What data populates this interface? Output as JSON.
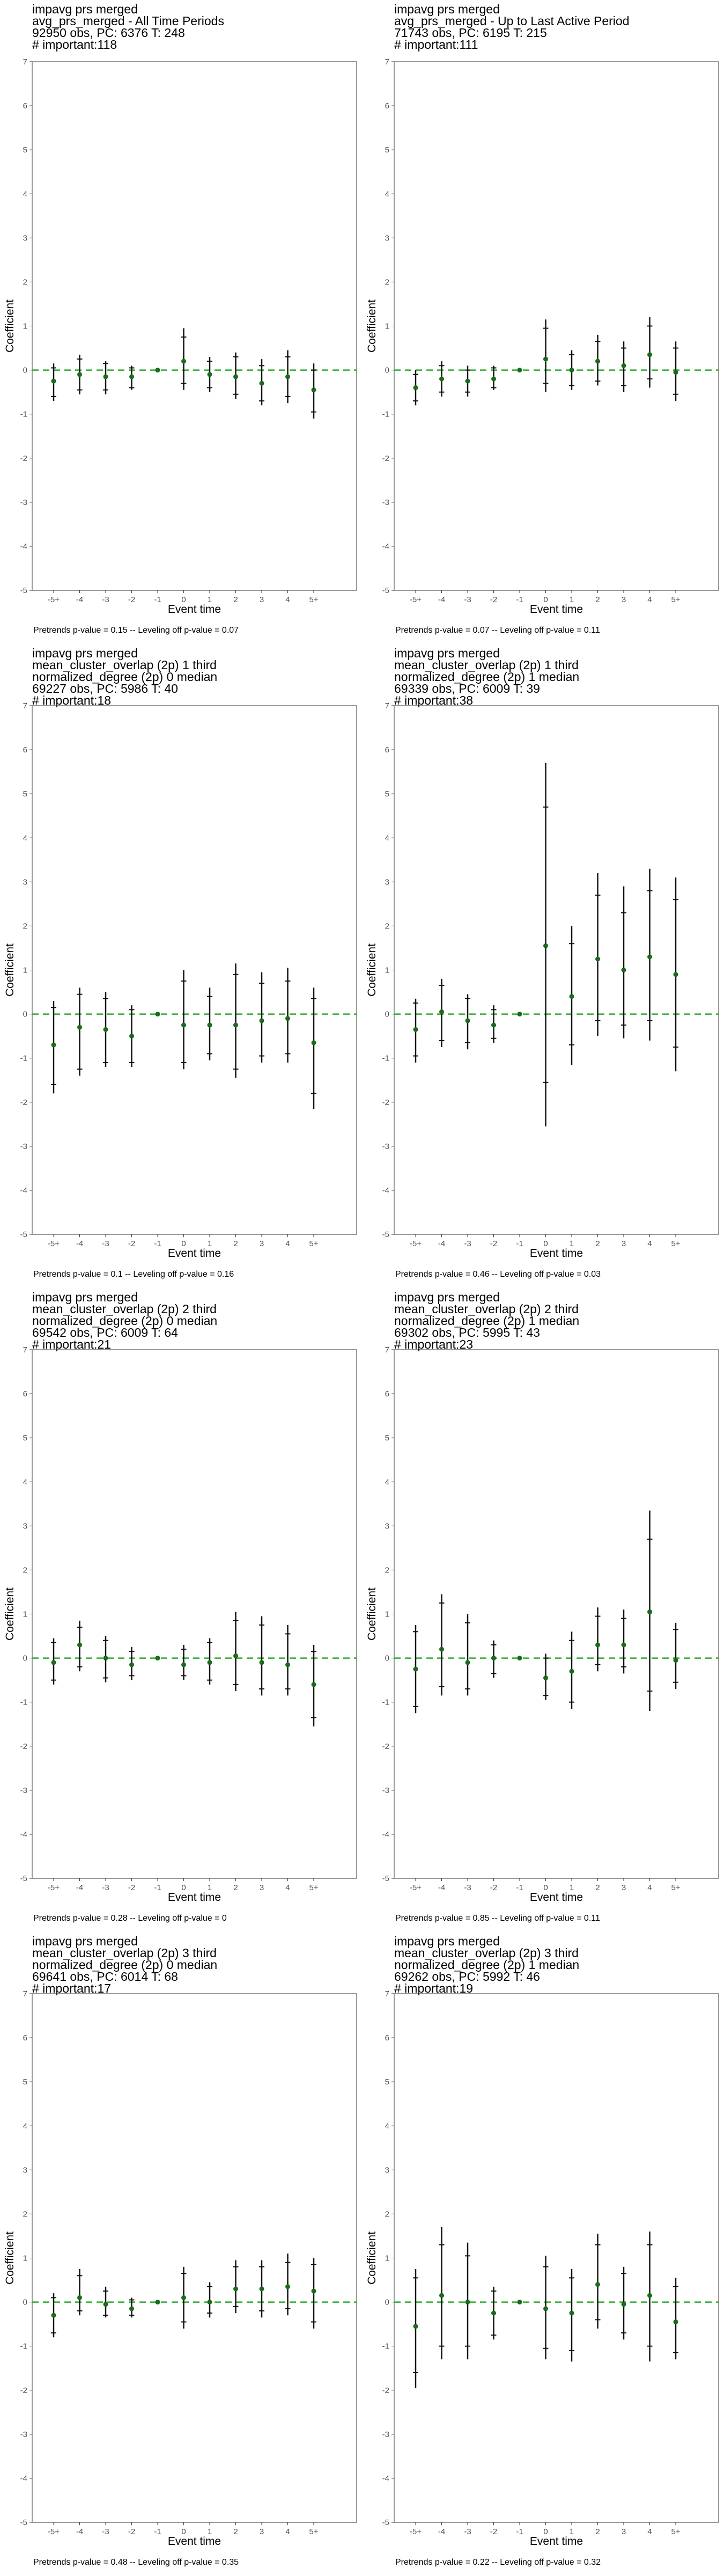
{
  "chart_data": [
    {
      "type": "errorbar",
      "title_lines": [
        "impavg prs merged",
        "avg_prs_merged - All Time Periods",
        "92950 obs, PC: 6376 T: 248",
        "# important:118"
      ],
      "xlabel": "Event time",
      "ylabel": "Coefficient",
      "ylim": [
        -5,
        7
      ],
      "y_ticks": [
        -5,
        -4,
        -3,
        -2,
        -1,
        0,
        1,
        2,
        3,
        4,
        5,
        6,
        7
      ],
      "categories": [
        "-5+",
        "-4",
        "-3",
        "-2",
        "-1",
        "0",
        "1",
        "2",
        "3",
        "4",
        "5+"
      ],
      "estimate": [
        -0.25,
        -0.1,
        -0.15,
        -0.15,
        0,
        0.2,
        -0.1,
        -0.15,
        -0.3,
        -0.15,
        -0.45
      ],
      "ci95_low": [
        -0.7,
        -0.55,
        -0.55,
        -0.45,
        0,
        -0.45,
        -0.5,
        -0.65,
        -0.8,
        -0.75,
        -1.1
      ],
      "ci95_high": [
        0.15,
        0.35,
        0.2,
        0.1,
        0,
        0.95,
        0.3,
        0.4,
        0.25,
        0.45,
        0.15
      ],
      "ci90_low": [
        -0.6,
        -0.45,
        -0.45,
        -0.4,
        0,
        -0.3,
        -0.4,
        -0.55,
        -0.7,
        -0.6,
        -0.95
      ],
      "ci90_high": [
        0.05,
        0.25,
        0.15,
        0.05,
        0,
        0.75,
        0.2,
        0.3,
        0.1,
        0.3,
        0.0
      ],
      "zero_line_color": "#2eaa2e",
      "point_color": "#1a6b1a",
      "footnote": "Pretrends p-value = 0.15 -- Leveling off p-value = 0.07"
    },
    {
      "type": "errorbar",
      "title_lines": [
        "impavg prs merged",
        "avg_prs_merged - Up to Last Active Period",
        "71743 obs, PC: 6195 T: 215",
        "# important:111"
      ],
      "xlabel": "Event time",
      "ylabel": "Coefficient",
      "ylim": [
        -5,
        7
      ],
      "y_ticks": [
        -5,
        -4,
        -3,
        -2,
        -1,
        0,
        1,
        2,
        3,
        4,
        5,
        6,
        7
      ],
      "categories": [
        "-5+",
        "-4",
        "-3",
        "-2",
        "-1",
        "0",
        "1",
        "2",
        "3",
        "4",
        "5+"
      ],
      "estimate": [
        -0.4,
        -0.2,
        -0.25,
        -0.2,
        0,
        0.25,
        0.0,
        0.2,
        0.1,
        0.35,
        -0.05
      ],
      "ci95_low": [
        -0.8,
        -0.6,
        -0.6,
        -0.45,
        0,
        -0.5,
        -0.45,
        -0.35,
        -0.5,
        -0.4,
        -0.7
      ],
      "ci95_high": [
        0.0,
        0.2,
        0.1,
        0.1,
        0,
        1.15,
        0.45,
        0.8,
        0.65,
        1.2,
        0.65
      ],
      "ci90_low": [
        -0.7,
        -0.5,
        -0.5,
        -0.4,
        0,
        -0.3,
        -0.35,
        -0.25,
        -0.35,
        -0.2,
        -0.55
      ],
      "ci90_high": [
        -0.1,
        0.1,
        0.0,
        0.05,
        0,
        0.95,
        0.35,
        0.65,
        0.5,
        1.0,
        0.5
      ],
      "zero_line_color": "#2eaa2e",
      "point_color": "#1a6b1a",
      "footnote": "Pretrends p-value = 0.07 -- Leveling off p-value = 0.11"
    },
    {
      "type": "errorbar",
      "title_lines": [
        "impavg prs merged",
        "mean_cluster_overlap (2p) 1 third",
        "normalized_degree (2p) 0 median",
        "69227 obs, PC: 5986 T: 40",
        "# important:18"
      ],
      "xlabel": "Event time",
      "ylabel": "Coefficient",
      "ylim": [
        -5,
        7
      ],
      "y_ticks": [
        -5,
        -4,
        -3,
        -2,
        -1,
        0,
        1,
        2,
        3,
        4,
        5,
        6,
        7
      ],
      "categories": [
        "-5+",
        "-4",
        "-3",
        "-2",
        "-1",
        "0",
        "1",
        "2",
        "3",
        "4",
        "5+"
      ],
      "estimate": [
        -0.7,
        -0.3,
        -0.35,
        -0.5,
        0,
        -0.25,
        -0.25,
        -0.25,
        -0.15,
        -0.1,
        -0.65
      ],
      "ci95_low": [
        -1.8,
        -1.4,
        -1.2,
        -1.2,
        0,
        -1.25,
        -1.05,
        -1.45,
        -1.1,
        -1.1,
        -2.15
      ],
      "ci95_high": [
        0.3,
        0.6,
        0.5,
        0.2,
        0,
        1.0,
        0.6,
        1.15,
        0.95,
        1.05,
        0.6
      ],
      "ci90_low": [
        -1.6,
        -1.25,
        -1.1,
        -1.1,
        0,
        -1.1,
        -0.9,
        -1.25,
        -0.95,
        -0.9,
        -1.8
      ],
      "ci90_high": [
        0.15,
        0.45,
        0.35,
        0.1,
        0,
        0.75,
        0.4,
        0.9,
        0.7,
        0.75,
        0.35
      ],
      "zero_line_color": "#2eaa2e",
      "point_color": "#1a6b1a",
      "footnote": "Pretrends p-value = 0.1 -- Leveling off p-value = 0.16"
    },
    {
      "type": "errorbar",
      "title_lines": [
        "impavg prs merged",
        "mean_cluster_overlap (2p) 1 third",
        "normalized_degree (2p) 1 median",
        "69339 obs, PC: 6009 T: 39",
        "# important:38"
      ],
      "xlabel": "Event time",
      "ylabel": "Coefficient",
      "ylim": [
        -5,
        7
      ],
      "y_ticks": [
        -5,
        -4,
        -3,
        -2,
        -1,
        0,
        1,
        2,
        3,
        4,
        5,
        6,
        7
      ],
      "categories": [
        "-5+",
        "-4",
        "-3",
        "-2",
        "-1",
        "0",
        "1",
        "2",
        "3",
        "4",
        "5+"
      ],
      "estimate": [
        -0.35,
        0.05,
        -0.15,
        -0.25,
        0,
        1.55,
        0.4,
        1.25,
        1.0,
        1.3,
        0.9
      ],
      "ci95_low": [
        -1.1,
        -0.75,
        -0.8,
        -0.65,
        0,
        -2.55,
        -1.15,
        -0.5,
        -0.55,
        -0.6,
        -1.3
      ],
      "ci95_high": [
        0.35,
        0.8,
        0.45,
        0.2,
        0,
        5.7,
        2.0,
        3.2,
        2.9,
        3.3,
        3.1
      ],
      "ci90_low": [
        -0.95,
        -0.6,
        -0.65,
        -0.55,
        0,
        -1.55,
        -0.7,
        -0.15,
        -0.25,
        -0.15,
        -0.75
      ],
      "ci90_high": [
        0.25,
        0.65,
        0.35,
        0.1,
        0,
        4.7,
        1.6,
        2.7,
        2.3,
        2.8,
        2.6
      ],
      "zero_line_color": "#2eaa2e",
      "point_color": "#1a6b1a",
      "footnote": "Pretrends p-value = 0.46 -- Leveling off p-value = 0.03"
    },
    {
      "type": "errorbar",
      "title_lines": [
        "impavg prs merged",
        "mean_cluster_overlap (2p) 2 third",
        "normalized_degree (2p) 0 median",
        "69542 obs, PC: 6009 T: 64",
        "# important:21"
      ],
      "xlabel": "Event time",
      "ylabel": "Coefficient",
      "ylim": [
        -5,
        7
      ],
      "y_ticks": [
        -5,
        -4,
        -3,
        -2,
        -1,
        0,
        1,
        2,
        3,
        4,
        5,
        6,
        7
      ],
      "categories": [
        "-5+",
        "-4",
        "-3",
        "-2",
        "-1",
        "0",
        "1",
        "2",
        "3",
        "4",
        "5+"
      ],
      "estimate": [
        -0.1,
        0.3,
        0.0,
        -0.15,
        0,
        -0.15,
        -0.1,
        0.05,
        -0.1,
        -0.15,
        -0.6
      ],
      "ci95_low": [
        -0.6,
        -0.3,
        -0.55,
        -0.5,
        0,
        -0.5,
        -0.6,
        -0.75,
        -0.85,
        -0.85,
        -1.55
      ],
      "ci95_high": [
        0.45,
        0.85,
        0.5,
        0.25,
        0,
        0.3,
        0.45,
        1.05,
        0.95,
        0.75,
        0.3
      ],
      "ci90_low": [
        -0.5,
        -0.2,
        -0.45,
        -0.4,
        0,
        -0.4,
        -0.5,
        -0.6,
        -0.7,
        -0.7,
        -1.35
      ],
      "ci90_high": [
        0.35,
        0.7,
        0.4,
        0.15,
        0,
        0.2,
        0.35,
        0.85,
        0.75,
        0.55,
        0.15
      ],
      "zero_line_color": "#2eaa2e",
      "point_color": "#1a6b1a",
      "footnote": "Pretrends p-value = 0.28 -- Leveling off p-value = 0"
    },
    {
      "type": "errorbar",
      "title_lines": [
        "impavg prs merged",
        "mean_cluster_overlap (2p) 2 third",
        "normalized_degree (2p) 1 median",
        "69302 obs, PC: 5995 T: 43",
        "# important:23"
      ],
      "xlabel": "Event time",
      "ylabel": "Coefficient",
      "ylim": [
        -5,
        7
      ],
      "y_ticks": [
        -5,
        -4,
        -3,
        -2,
        -1,
        0,
        1,
        2,
        3,
        4,
        5,
        6,
        7
      ],
      "categories": [
        "-5+",
        "-4",
        "-3",
        "-2",
        "-1",
        "0",
        "1",
        "2",
        "3",
        "4",
        "5+"
      ],
      "estimate": [
        -0.25,
        0.2,
        -0.1,
        0.0,
        0,
        -0.45,
        -0.3,
        0.3,
        0.3,
        1.05,
        -0.05
      ],
      "ci95_low": [
        -1.25,
        -0.85,
        -0.85,
        -0.45,
        0,
        -0.95,
        -1.15,
        -0.3,
        -0.35,
        -1.2,
        -0.7
      ],
      "ci95_high": [
        0.75,
        1.45,
        1.0,
        0.4,
        0,
        0.1,
        0.6,
        1.15,
        1.1,
        3.35,
        0.8
      ],
      "ci90_low": [
        -1.1,
        -0.65,
        -0.7,
        -0.35,
        0,
        -0.85,
        -1.0,
        -0.15,
        -0.2,
        -0.75,
        -0.55
      ],
      "ci90_high": [
        0.6,
        1.25,
        0.8,
        0.3,
        0,
        0.0,
        0.4,
        0.95,
        0.9,
        2.7,
        0.65
      ],
      "zero_line_color": "#2eaa2e",
      "point_color": "#1a6b1a",
      "footnote": "Pretrends p-value = 0.85 -- Leveling off p-value = 0.11"
    },
    {
      "type": "errorbar",
      "title_lines": [
        "impavg prs merged",
        "mean_cluster_overlap (2p) 3 third",
        "normalized_degree (2p) 0 median",
        "69641 obs, PC: 6014 T: 68",
        "# important:17"
      ],
      "xlabel": "Event time",
      "ylabel": "Coefficient",
      "ylim": [
        -5,
        7
      ],
      "y_ticks": [
        -5,
        -4,
        -3,
        -2,
        -1,
        0,
        1,
        2,
        3,
        4,
        5,
        6,
        7
      ],
      "categories": [
        "-5+",
        "-4",
        "-3",
        "-2",
        "-1",
        "0",
        "1",
        "2",
        "3",
        "4",
        "5+"
      ],
      "estimate": [
        -0.3,
        0.1,
        -0.05,
        -0.15,
        0,
        0.1,
        0.0,
        0.3,
        0.3,
        0.35,
        0.25
      ],
      "ci95_low": [
        -0.8,
        -0.3,
        -0.35,
        -0.35,
        0,
        -0.6,
        -0.35,
        -0.25,
        -0.35,
        -0.3,
        -0.6
      ],
      "ci95_high": [
        0.2,
        0.75,
        0.35,
        0.1,
        0,
        0.8,
        0.45,
        0.95,
        0.95,
        1.1,
        1.0
      ],
      "ci90_low": [
        -0.7,
        -0.2,
        -0.3,
        -0.3,
        0,
        -0.45,
        -0.25,
        -0.1,
        -0.2,
        -0.15,
        -0.45
      ],
      "ci90_high": [
        0.1,
        0.6,
        0.25,
        0.05,
        0,
        0.65,
        0.35,
        0.8,
        0.8,
        0.9,
        0.85
      ],
      "zero_line_color": "#2eaa2e",
      "point_color": "#1a6b1a",
      "footnote": "Pretrends p-value = 0.48 -- Leveling off p-value = 0.35"
    },
    {
      "type": "errorbar",
      "title_lines": [
        "impavg prs merged",
        "mean_cluster_overlap (2p) 3 third",
        "normalized_degree (2p) 1 median",
        "69262 obs, PC: 5992 T: 46",
        "# important:19"
      ],
      "xlabel": "Event time",
      "ylabel": "Coefficient",
      "ylim": [
        -5,
        7
      ],
      "y_ticks": [
        -5,
        -4,
        -3,
        -2,
        -1,
        0,
        1,
        2,
        3,
        4,
        5,
        6,
        7
      ],
      "categories": [
        "-5+",
        "-4",
        "-3",
        "-2",
        "-1",
        "0",
        "1",
        "2",
        "3",
        "4",
        "5+"
      ],
      "estimate": [
        -0.55,
        0.15,
        0.0,
        -0.25,
        0,
        -0.15,
        -0.25,
        0.4,
        -0.05,
        0.15,
        -0.45
      ],
      "ci95_low": [
        -1.95,
        -1.3,
        -1.3,
        -0.85,
        0,
        -1.3,
        -1.35,
        -0.6,
        -0.85,
        -1.35,
        -1.3
      ],
      "ci95_high": [
        0.75,
        1.7,
        1.35,
        0.35,
        0,
        1.05,
        0.75,
        1.55,
        0.8,
        1.6,
        0.55
      ],
      "ci90_low": [
        -1.6,
        -1.0,
        -1.0,
        -0.75,
        0,
        -1.05,
        -1.1,
        -0.4,
        -0.7,
        -1.0,
        -1.15
      ],
      "ci90_high": [
        0.55,
        1.3,
        1.05,
        0.25,
        0,
        0.8,
        0.55,
        1.3,
        0.65,
        1.3,
        0.35
      ],
      "zero_line_color": "#2eaa2e",
      "point_color": "#1a6b1a",
      "footnote": "Pretrends p-value = 0.22 -- Leveling off p-value = 0.32"
    }
  ]
}
